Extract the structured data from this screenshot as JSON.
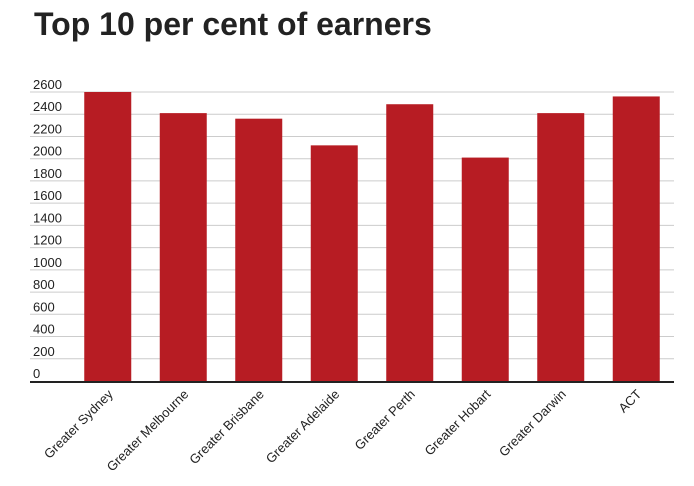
{
  "chart_data": {
    "type": "bar",
    "title": "Top 10 per cent of earners",
    "categories": [
      "Greater Sydney",
      "Greater Melbourne",
      "Greater Brisbane",
      "Greater Adelaide",
      "Greater Perth",
      "Greater Hobart",
      "Greater Darwin",
      "ACT"
    ],
    "values": [
      2600,
      2410,
      2360,
      2120,
      2490,
      2010,
      2410,
      2560
    ],
    "yticks": [
      0,
      200,
      400,
      600,
      800,
      1000,
      1200,
      1400,
      1600,
      1800,
      2000,
      2200,
      2400,
      2600
    ],
    "ylim": [
      0,
      2600
    ],
    "xlabel": "",
    "ylabel": "",
    "grid": true,
    "legend": "none",
    "bar_color": "#b71c23"
  }
}
